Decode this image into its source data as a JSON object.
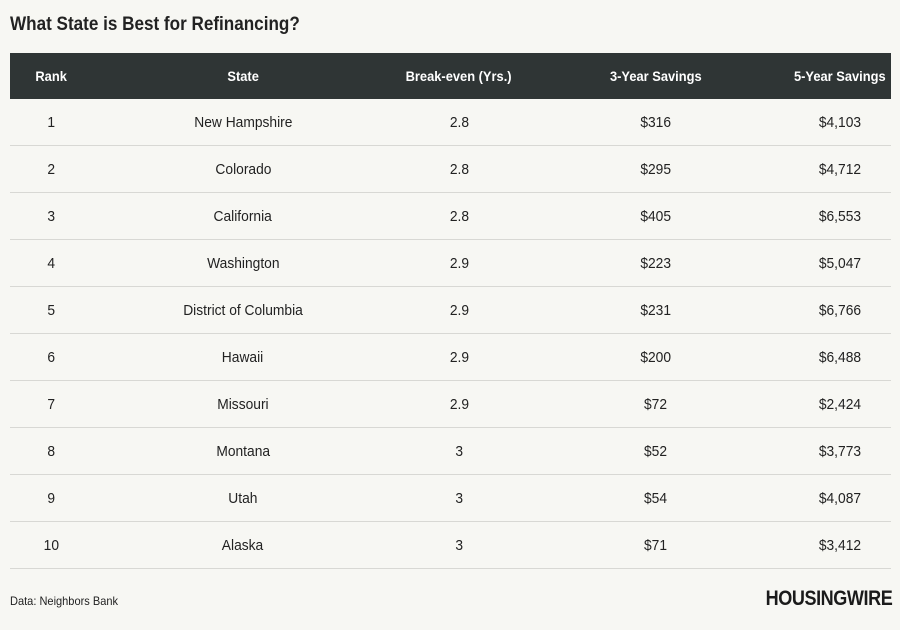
{
  "chart_data": {
    "type": "table",
    "title": "What State is Best for Refinancing?",
    "columns": [
      "Rank",
      "State",
      "Break-even (Yrs.)",
      "3-Year Savings",
      "5-Year Savings"
    ],
    "rows": [
      [
        "1",
        "New Hampshire",
        "2.8",
        "$316",
        "$4,103"
      ],
      [
        "2",
        "Colorado",
        "2.8",
        "$295",
        "$4,712"
      ],
      [
        "3",
        "California",
        "2.8",
        "$405",
        "$6,553"
      ],
      [
        "4",
        "Washington",
        "2.9",
        "$223",
        "$5,047"
      ],
      [
        "5",
        "District of Columbia",
        "2.9",
        "$231",
        "$6,766"
      ],
      [
        "6",
        "Hawaii",
        "2.9",
        "$200",
        "$6,488"
      ],
      [
        "7",
        "Missouri",
        "2.9",
        "$72",
        "$2,424"
      ],
      [
        "8",
        "Montana",
        "3",
        "$52",
        "$3,773"
      ],
      [
        "9",
        "Utah",
        "3",
        "$54",
        "$4,087"
      ],
      [
        "10",
        "Alaska",
        "3",
        "$71",
        "$3,412"
      ]
    ],
    "source": "Data: Neighbors Bank"
  },
  "brand": {
    "logo_text": "HOUSINGWIRE"
  },
  "colors": {
    "header_bg": "#2f3535",
    "page_bg": "#f7f7f3",
    "row_divider": "#d8d8d4"
  }
}
